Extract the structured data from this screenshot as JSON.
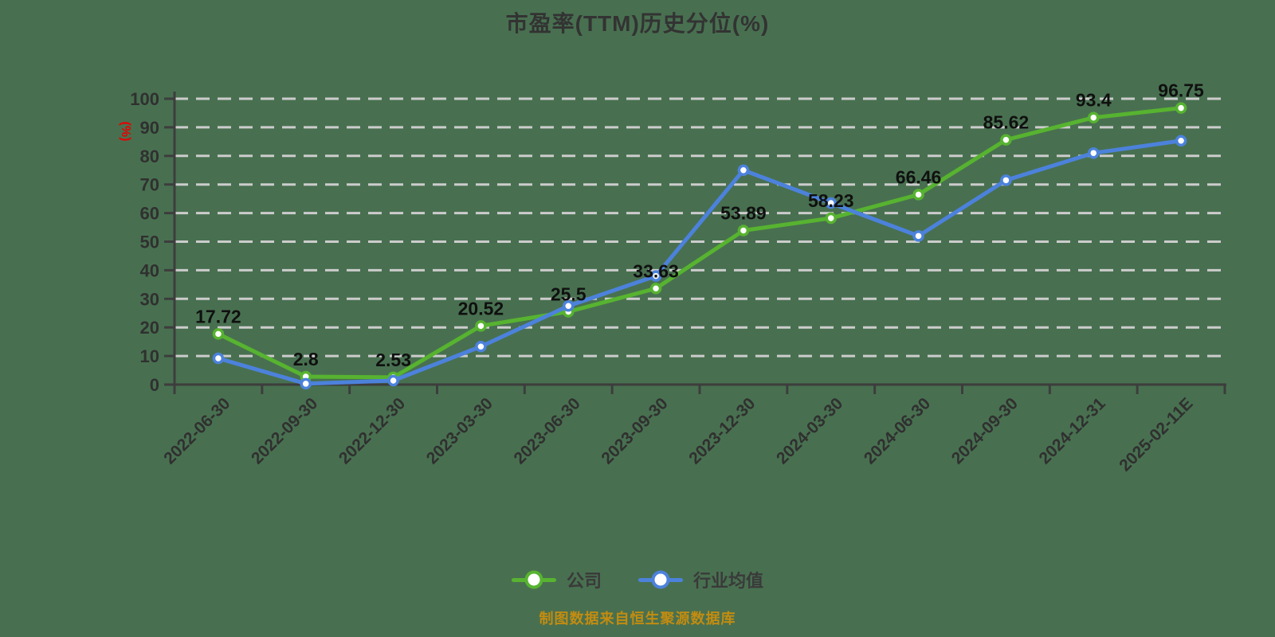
{
  "title": "市盈率(TTM)历史分位(%)",
  "footer": "制图数据来自恒生聚源数据库",
  "y_axis": {
    "unit": "(%)",
    "ticks": [
      0,
      10,
      20,
      30,
      40,
      50,
      60,
      70,
      80,
      90,
      100
    ]
  },
  "colors": {
    "background": "#487050",
    "company_series": "#57b330",
    "industry_series": "#4c82dc",
    "grid": "#cccccc",
    "axis": "#3d3d3d",
    "tick_text": "#303030",
    "data_label_text": "#101010",
    "unit_text": "#e60000",
    "legend_text": "#3a3a3a",
    "title_text": "#333333",
    "footer_text": "#c38c10"
  },
  "chart_data": {
    "type": "line",
    "title": "市盈率(TTM)历史分位(%)",
    "xlabel": "",
    "ylabel": "(%)",
    "ylim": [
      0,
      100
    ],
    "grid": "horizontal-dashed",
    "legend_position": "bottom",
    "categories": [
      "2022-06-30",
      "2022-09-30",
      "2022-12-30",
      "2023-03-30",
      "2023-06-30",
      "2023-09-30",
      "2023-12-30",
      "2024-03-30",
      "2024-06-30",
      "2024-09-30",
      "2024-12-31",
      "2025-02-11E"
    ],
    "series": [
      {
        "name": "公司",
        "color": "#57b330",
        "marker": "circle-white-fill",
        "data_labels_shown": true,
        "values": [
          17.72,
          2.8,
          2.53,
          20.52,
          25.5,
          33.63,
          53.89,
          58.23,
          66.46,
          85.62,
          93.4,
          96.75
        ]
      },
      {
        "name": "行业均值",
        "color": "#4c82dc",
        "marker": "circle-white-fill",
        "data_labels_shown": false,
        "values": [
          9.2,
          0.3,
          1.4,
          13.3,
          27.5,
          38,
          75,
          63.5,
          52,
          71.5,
          81,
          85.3
        ]
      }
    ]
  }
}
